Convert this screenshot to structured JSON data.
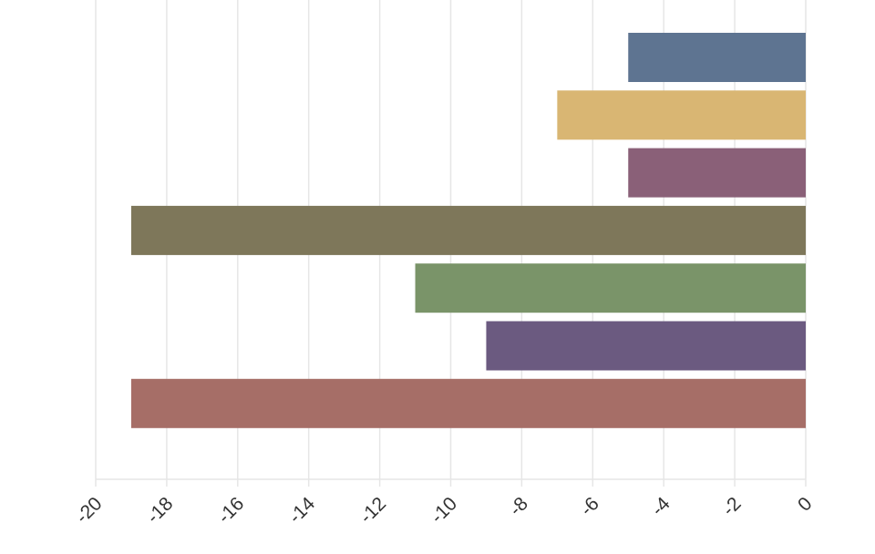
{
  "chart_data": {
    "type": "bar",
    "orientation": "horizontal",
    "title": "",
    "xlabel": "",
    "ylabel": "",
    "xlim": [
      -20,
      0
    ],
    "x_ticks": [
      -20,
      -18,
      -16,
      -14,
      -12,
      -10,
      -8,
      -6,
      -4,
      -2,
      0
    ],
    "tick_labels": [
      "-20",
      "-18",
      "-16",
      "-14",
      "-12",
      "-10",
      "-8",
      "-6",
      "-4",
      "-2",
      "0"
    ],
    "grid": true,
    "legend": "none",
    "bars": [
      {
        "value": -5,
        "color": "#5e7491"
      },
      {
        "value": -7,
        "color": "#d9b673"
      },
      {
        "value": -5,
        "color": "#8a6078"
      },
      {
        "value": -19,
        "color": "#7e775a"
      },
      {
        "value": -11,
        "color": "#7a9469"
      },
      {
        "value": -9,
        "color": "#6b5a80"
      },
      {
        "value": -19,
        "color": "#a66e67"
      }
    ]
  }
}
